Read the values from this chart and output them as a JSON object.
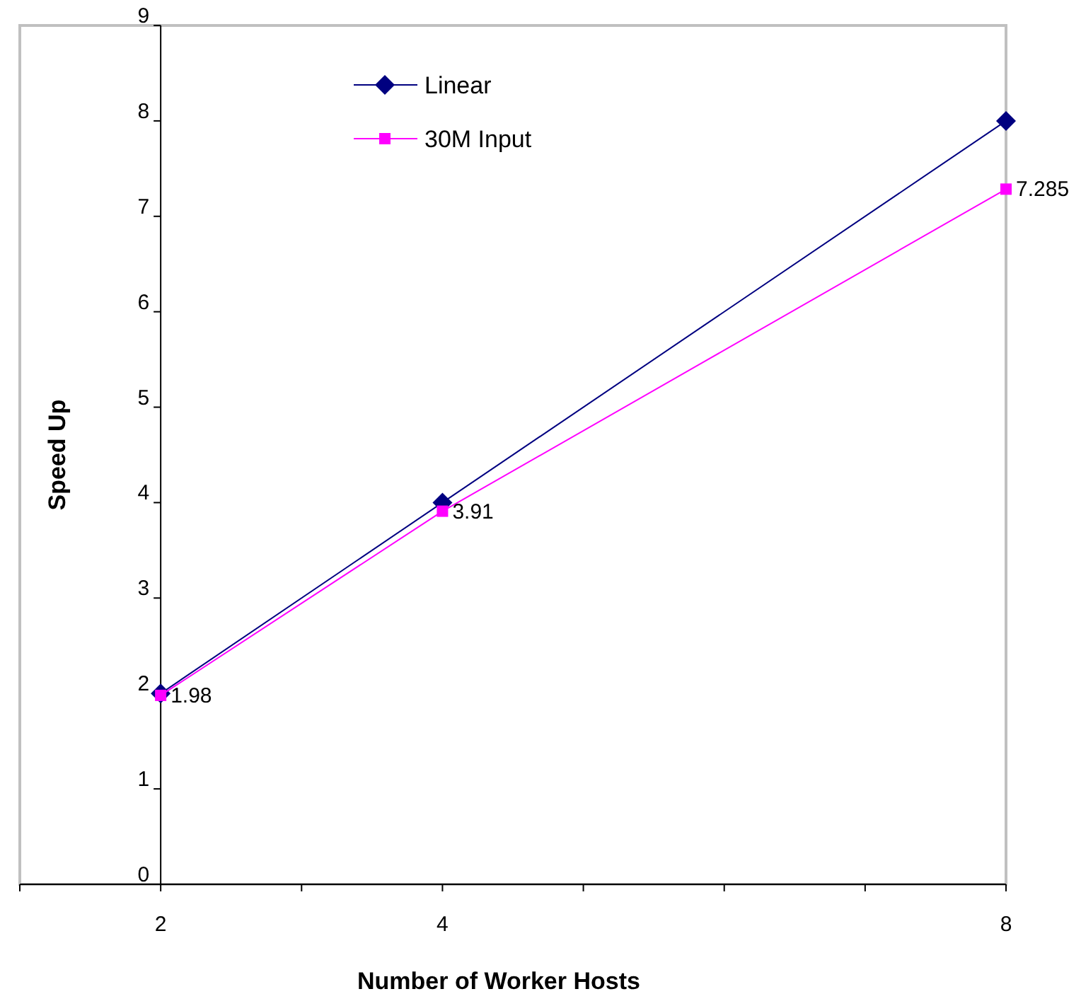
{
  "chart_data": {
    "type": "line",
    "xlabel": "Number of Worker Hosts",
    "ylabel": "Speed Up",
    "x": [
      2,
      4,
      8
    ],
    "xlim": [
      1,
      8
    ],
    "xticks": [
      {
        "value": 1,
        "label": null
      },
      2,
      {
        "value": 3,
        "label": null
      },
      4,
      {
        "value": 5,
        "label": null
      },
      {
        "value": 6,
        "label": null
      },
      {
        "value": 7,
        "label": null
      },
      8
    ],
    "ylim": [
      0,
      9
    ],
    "yticks": [
      0,
      1,
      2,
      3,
      4,
      5,
      6,
      7,
      8,
      9
    ],
    "grid": false,
    "legend": "top left",
    "series": [
      {
        "name": "Linear",
        "color": "#000080",
        "values": [
          2,
          4,
          8
        ],
        "marker": "diamond"
      },
      {
        "name": "30M Input",
        "color": "#ff00ff",
        "values": [
          1.98,
          3.91,
          7.285
        ],
        "marker": "square",
        "value_labels": [
          "1.98",
          "3.91",
          "7.285"
        ]
      }
    ]
  }
}
